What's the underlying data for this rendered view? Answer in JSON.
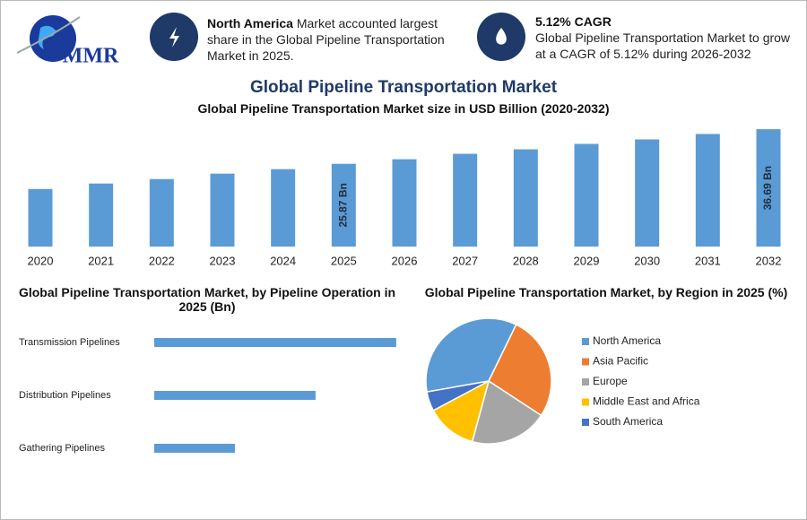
{
  "header": {
    "logo": "MMR",
    "info": [
      {
        "highlight": "North America",
        "text": "Market accounted largest share in the Global Pipeline Transportation Market in 2025."
      },
      {
        "highlight": "5.12% CAGR",
        "text": "Global Pipeline Transportation Market to grow at a CAGR of 5.12% during 2026-2032"
      }
    ]
  },
  "title": "Global Pipeline Transportation Market",
  "chart_data": [
    {
      "type": "bar",
      "title": "Global Pipeline Transportation Market size in USD Billion (2020-2032)",
      "categories": [
        "2020",
        "2021",
        "2022",
        "2023",
        "2024",
        "2025",
        "2026",
        "2027",
        "2028",
        "2029",
        "2030",
        "2031",
        "2032"
      ],
      "values": [
        18.0,
        19.7,
        21.1,
        22.8,
        24.2,
        25.87,
        27.3,
        29.0,
        30.4,
        32.1,
        33.5,
        35.2,
        36.69
      ],
      "value_labels": [
        null,
        null,
        null,
        null,
        null,
        "25.87 Bn",
        null,
        null,
        null,
        null,
        null,
        null,
        "36.69 Bn"
      ],
      "color": "#5b9bd5",
      "ylim": [
        0,
        37
      ]
    },
    {
      "type": "hbar",
      "title": "Global Pipeline Transportation Market, by Pipeline Operation in 2025 (Bn)",
      "categories": [
        "Transmission Pipelines",
        "Distribution Pipelines",
        "Gathering Pipelines"
      ],
      "values": [
        12.9,
        8.6,
        4.3
      ],
      "color": "#5b9bd5",
      "xlim": [
        0,
        13
      ]
    },
    {
      "type": "pie",
      "title": "Global Pipeline Transportation Market, by Region in 2025 (%)",
      "categories": [
        "North America",
        "Asia Pacific",
        "Europe",
        "Middle East and Africa",
        "South America"
      ],
      "values": [
        35,
        27,
        20,
        13,
        5
      ],
      "colors": [
        "#5b9bd5",
        "#ed7d31",
        "#a5a5a5",
        "#ffc000",
        "#4472c4"
      ],
      "legend": "right"
    }
  ]
}
